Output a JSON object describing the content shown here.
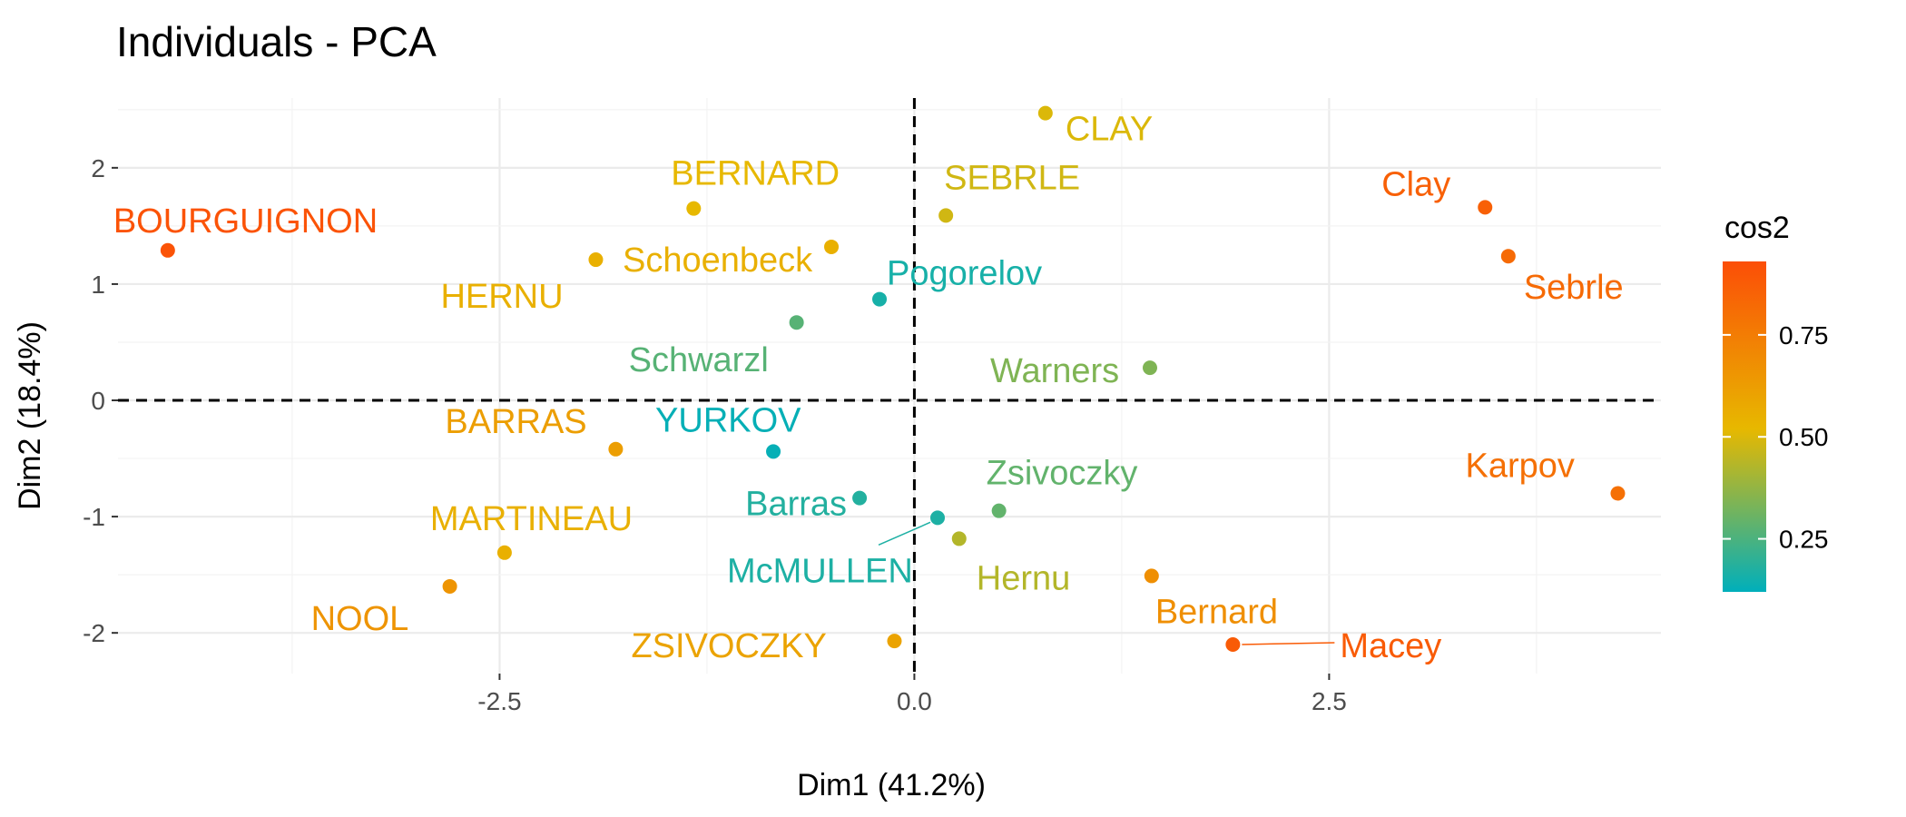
{
  "chart_data": {
    "type": "scatter",
    "title": "Individuals - PCA",
    "xlabel": "Dim1 (41.2%)",
    "ylabel": "Dim2 (18.4%)",
    "xlim": [
      -4.8,
      4.5
    ],
    "ylim": [
      -2.35,
      2.6
    ],
    "xticks": [
      -2.5,
      0.0,
      2.5
    ],
    "xtick_labels": [
      "-2.5",
      "0.0",
      "2.5"
    ],
    "yticks": [
      -2,
      -1,
      0,
      1,
      2
    ],
    "ytick_labels": [
      "-2",
      "-1",
      "0",
      "1",
      "2"
    ],
    "reference_lines": {
      "x": 0,
      "y": 0
    },
    "grid": true,
    "color_scale": {
      "name": "cos2",
      "stops": [
        {
          "value": 0.12,
          "color": "#00AFBB"
        },
        {
          "value": 0.52,
          "color": "#E7B800"
        },
        {
          "value": 0.93,
          "color": "#FC4E07"
        }
      ],
      "ticks": [
        0.25,
        0.5,
        0.75
      ],
      "tick_labels": [
        "0.25",
        "0.50",
        "0.75"
      ],
      "placement": "right"
    },
    "points": [
      {
        "label": "SEBRLE",
        "x": 0.19,
        "y": 1.59,
        "cos2": 0.48
      },
      {
        "label": "CLAY",
        "x": 0.79,
        "y": 2.47,
        "cos2": 0.5
      },
      {
        "label": "BERNARD",
        "x": -1.33,
        "y": 1.65,
        "cos2": 0.52
      },
      {
        "label": "YURKOV",
        "x": -0.85,
        "y": -0.44,
        "cos2": 0.13
      },
      {
        "label": "ZSIVOCZKY",
        "x": -0.12,
        "y": -2.07,
        "cos2": 0.6
      },
      {
        "label": "McMULLEN",
        "x": 0.14,
        "y": -1.01,
        "cos2": 0.17
      },
      {
        "label": "MARTINEAU",
        "x": -2.47,
        "y": -1.31,
        "cos2": 0.55
      },
      {
        "label": "HERNU",
        "x": -1.92,
        "y": 1.21,
        "cos2": 0.55
      },
      {
        "label": "BARRAS",
        "x": -1.8,
        "y": -0.42,
        "cos2": 0.62
      },
      {
        "label": "NOOL",
        "x": -2.8,
        "y": -1.6,
        "cos2": 0.66
      },
      {
        "label": "BOURGUIGNON",
        "x": -4.5,
        "y": 1.29,
        "cos2": 0.91
      },
      {
        "label": "Sebrle",
        "x": 3.58,
        "y": 1.24,
        "cos2": 0.82
      },
      {
        "label": "Clay",
        "x": 3.44,
        "y": 1.66,
        "cos2": 0.86
      },
      {
        "label": "Karpov",
        "x": 4.24,
        "y": -0.8,
        "cos2": 0.8
      },
      {
        "label": "Macey",
        "x": 1.92,
        "y": -2.1,
        "cos2": 0.88
      },
      {
        "label": "Warners",
        "x": 1.42,
        "y": 0.28,
        "cos2": 0.34
      },
      {
        "label": "Zsivoczky",
        "x": 0.51,
        "y": -0.95,
        "cos2": 0.29
      },
      {
        "label": "Hernu",
        "x": 0.27,
        "y": -1.19,
        "cos2": 0.43
      },
      {
        "label": "Bernard",
        "x": 1.43,
        "y": -1.51,
        "cos2": 0.68
      },
      {
        "label": "Schwarzl",
        "x": -0.71,
        "y": 0.67,
        "cos2": 0.27
      },
      {
        "label": "Pogorelov",
        "x": -0.21,
        "y": 0.87,
        "cos2": 0.16
      },
      {
        "label": "Schoenbeck",
        "x": -0.5,
        "y": 1.32,
        "cos2": 0.55
      },
      {
        "label": "Barras",
        "x": -0.33,
        "y": -0.84,
        "cos2": 0.18
      }
    ]
  }
}
